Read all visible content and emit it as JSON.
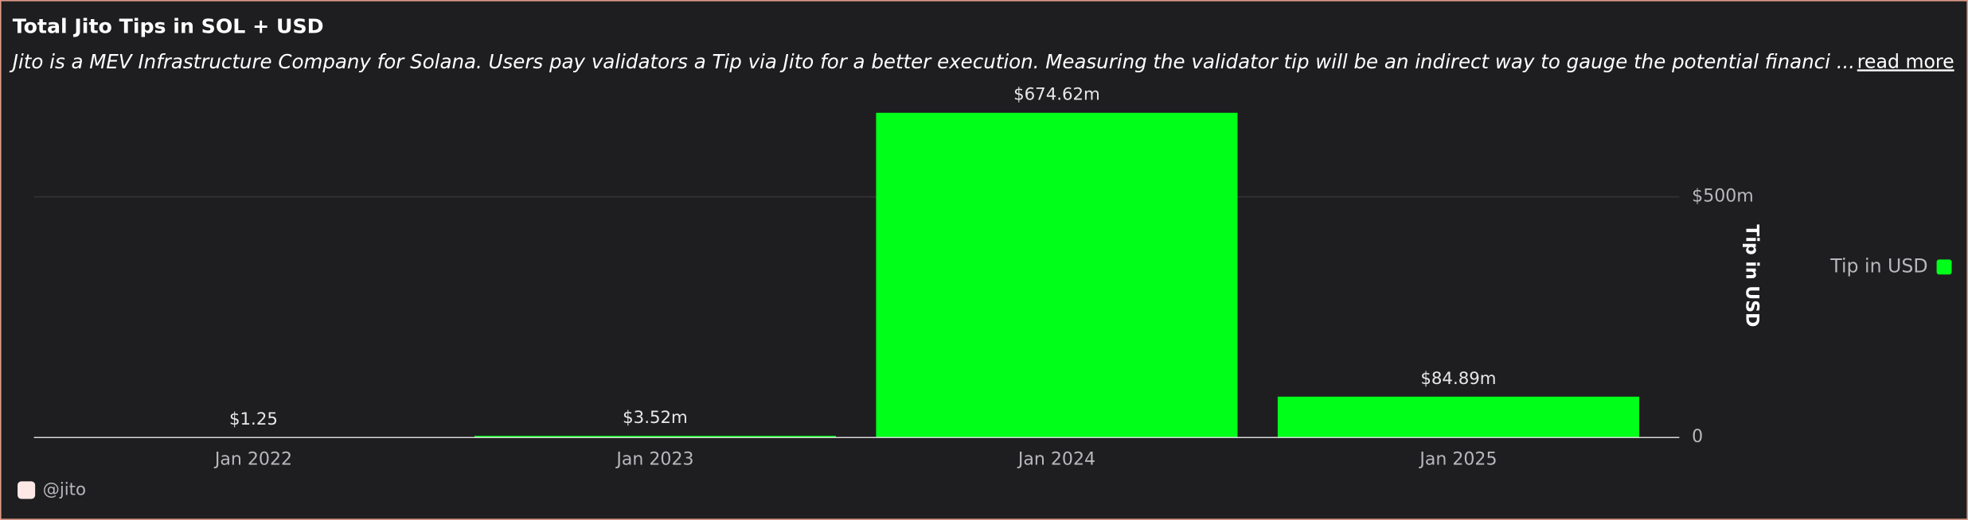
{
  "chart_data": {
    "type": "bar",
    "title": "Total Jito Tips in SOL + USD",
    "subtitle": "Jito is a MEV Infrastructure Company for Solana. Users pay validators a Tip via Jito for a better execution. Measuring the validator tip will be an indirect way to gauge the potential financi ...",
    "link_text": "read more",
    "categories": [
      "Jan 2022",
      "Jan 2023",
      "Jan 2024",
      "Jan 2025"
    ],
    "series": [
      {
        "name": "Tip in USD",
        "color": "#00ff19",
        "values": [
          1.25,
          3520000,
          674620000,
          84890000
        ],
        "value_labels": [
          "$1.25",
          "$3.52m",
          "$674.62m",
          "$84.89m"
        ]
      }
    ],
    "ylabel": "Tip in USD",
    "ylim": [
      0,
      700000000
    ],
    "yticks": [
      0,
      {
        "value": 500000000,
        "label": "$500m"
      }
    ],
    "y_axis_side": "right",
    "grid": true,
    "legend": "right",
    "source": "@jito"
  }
}
